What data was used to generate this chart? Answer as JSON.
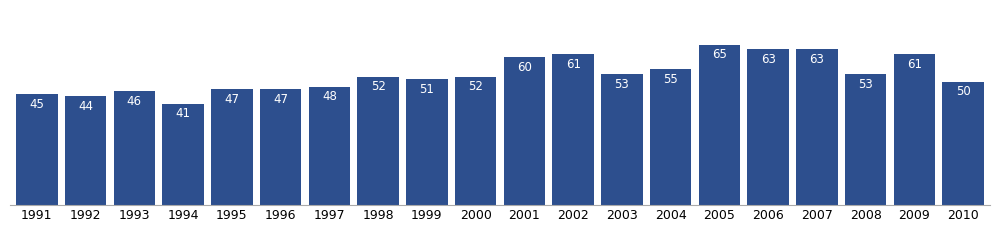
{
  "years": [
    1991,
    1992,
    1993,
    1994,
    1995,
    1996,
    1997,
    1998,
    1999,
    2000,
    2001,
    2002,
    2003,
    2004,
    2005,
    2006,
    2007,
    2008,
    2009,
    2010
  ],
  "values": [
    45,
    44,
    46,
    41,
    47,
    47,
    48,
    52,
    51,
    52,
    60,
    61,
    53,
    55,
    65,
    63,
    63,
    53,
    61,
    50
  ],
  "bar_color": "#2d4f8e",
  "label_color": "#ffffff",
  "label_fontsize": 8.5,
  "tick_fontsize": 9,
  "background_color": "#ffffff",
  "ylim": [
    0,
    80
  ],
  "bar_width": 0.85
}
